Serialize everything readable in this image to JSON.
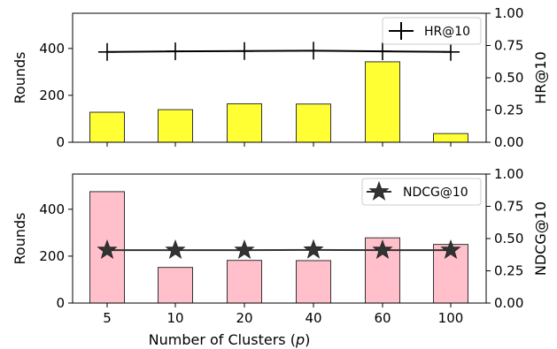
{
  "chart_data": [
    {
      "type": "bar",
      "categories": [
        "5",
        "10",
        "20",
        "40",
        "60",
        "100"
      ],
      "series": [
        {
          "values": [
            128,
            139,
            164,
            163,
            343,
            37
          ],
          "color": "#ffff33"
        },
        {
          "name": "HR@10",
          "type": "line",
          "axis": "right",
          "values": [
            0.7,
            0.705,
            0.707,
            0.71,
            0.705,
            0.7
          ],
          "color": "#000000",
          "marker": "plus"
        }
      ],
      "ylabel": "Rounds",
      "ylim": [
        0,
        550
      ],
      "yticks": [
        "0",
        "200",
        "400"
      ],
      "y2label": "HR@10",
      "y2lim": [
        0,
        1.0
      ],
      "y2ticks": [
        "0.00",
        "0.25",
        "0.50",
        "0.75",
        "1.00"
      ],
      "legend": "top-right",
      "grid": false
    },
    {
      "type": "bar",
      "categories": [
        "5",
        "10",
        "20",
        "40",
        "60",
        "100"
      ],
      "series": [
        {
          "values": [
            475,
            152,
            182,
            181,
            278,
            250
          ],
          "color": "#ffc0cb"
        },
        {
          "name": "NDCG@10",
          "type": "line",
          "axis": "right",
          "values": [
            0.41,
            0.41,
            0.41,
            0.412,
            0.41,
            0.41
          ],
          "color": "#333333",
          "marker": "star"
        }
      ],
      "xlabel": "Number of Clusters (p)",
      "ylabel": "Rounds",
      "ylim": [
        0,
        550
      ],
      "yticks": [
        "0",
        "200",
        "400"
      ],
      "y2label": "NDCG@10",
      "y2lim": [
        0,
        1.0
      ],
      "y2ticks": [
        "0.00",
        "0.25",
        "0.50",
        "0.75",
        "1.00"
      ],
      "legend": "top-right",
      "grid": false
    }
  ],
  "xlabel_prefix": "Number of Clusters (",
  "xlabel_var": "p",
  "xlabel_suffix": ")"
}
